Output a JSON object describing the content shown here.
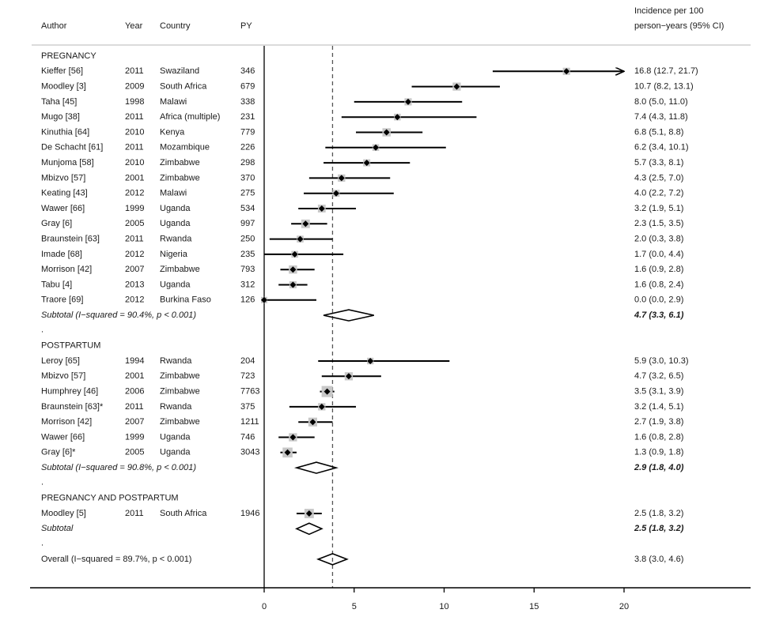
{
  "chart_data": {
    "type": "forest",
    "columns": {
      "author": "Author",
      "year": "Year",
      "country": "Country",
      "py": "PY",
      "estimate_line1": "Incidence per 100",
      "estimate_line2": "person−years (95% CI)"
    },
    "xlim": [
      0,
      20
    ],
    "xticks": [
      0,
      5,
      10,
      15,
      20
    ],
    "reference_line": 3.8,
    "groups": [
      {
        "name": "PREGNANCY",
        "studies": [
          {
            "author": "Kieffer [56]",
            "year": "2011",
            "country": "Swaziland",
            "py": "346",
            "est": 16.8,
            "lo": 12.7,
            "hi": 21.7,
            "label": "16.8 (12.7, 21.7)"
          },
          {
            "author": "Moodley [3]",
            "year": "2009",
            "country": "South Africa",
            "py": "679",
            "est": 10.7,
            "lo": 8.2,
            "hi": 13.1,
            "label": "10.7 (8.2, 13.1)"
          },
          {
            "author": "Taha [45]",
            "year": "1998",
            "country": "Malawi",
            "py": "338",
            "est": 8.0,
            "lo": 5.0,
            "hi": 11.0,
            "label": "8.0 (5.0, 11.0)"
          },
          {
            "author": "Mugo [38]",
            "year": "2011",
            "country": "Africa (multiple)",
            "py": "231",
            "est": 7.4,
            "lo": 4.3,
            "hi": 11.8,
            "label": "7.4 (4.3, 11.8)"
          },
          {
            "author": "Kinuthia [64]",
            "year": "2010",
            "country": "Kenya",
            "py": "779",
            "est": 6.8,
            "lo": 5.1,
            "hi": 8.8,
            "label": "6.8 (5.1, 8.8)"
          },
          {
            "author": "De Schacht [61]",
            "year": "2011",
            "country": "Mozambique",
            "py": "226",
            "est": 6.2,
            "lo": 3.4,
            "hi": 10.1,
            "label": "6.2 (3.4, 10.1)"
          },
          {
            "author": "Munjoma [58]",
            "year": "2010",
            "country": "Zimbabwe",
            "py": "298",
            "est": 5.7,
            "lo": 3.3,
            "hi": 8.1,
            "label": "5.7 (3.3, 8.1)"
          },
          {
            "author": "Mbizvo [57]",
            "year": "2001",
            "country": "Zimbabwe",
            "py": "370",
            "est": 4.3,
            "lo": 2.5,
            "hi": 7.0,
            "label": "4.3 (2.5, 7.0)"
          },
          {
            "author": "Keating [43]",
            "year": "2012",
            "country": "Malawi",
            "py": "275",
            "est": 4.0,
            "lo": 2.2,
            "hi": 7.2,
            "label": "4.0 (2.2, 7.2)"
          },
          {
            "author": "Wawer [66]",
            "year": "1999",
            "country": "Uganda",
            "py": "534",
            "est": 3.2,
            "lo": 1.9,
            "hi": 5.1,
            "label": "3.2 (1.9, 5.1)"
          },
          {
            "author": "Gray [6]",
            "year": "2005",
            "country": "Uganda",
            "py": "997",
            "est": 2.3,
            "lo": 1.5,
            "hi": 3.5,
            "label": "2.3 (1.5, 3.5)"
          },
          {
            "author": "Braunstein [63]",
            "year": "2011",
            "country": "Rwanda",
            "py": "250",
            "est": 2.0,
            "lo": 0.3,
            "hi": 3.8,
            "label": "2.0 (0.3, 3.8)"
          },
          {
            "author": "Imade [68]",
            "year": "2012",
            "country": "Nigeria",
            "py": "235",
            "est": 1.7,
            "lo": 0.0,
            "hi": 4.4,
            "label": "1.7 (0.0, 4.4)"
          },
          {
            "author": "Morrison [42]",
            "year": "2007",
            "country": "Zimbabwe",
            "py": "793",
            "est": 1.6,
            "lo": 0.9,
            "hi": 2.8,
            "label": "1.6 (0.9, 2.8)"
          },
          {
            "author": "Tabu [4]",
            "year": "2013",
            "country": "Uganda",
            "py": "312",
            "est": 1.6,
            "lo": 0.8,
            "hi": 2.4,
            "label": "1.6 (0.8, 2.4)"
          },
          {
            "author": "Traore [69]",
            "year": "2012",
            "country": "Burkina Faso",
            "py": "126",
            "est": 0.0,
            "lo": 0.0,
            "hi": 2.9,
            "label": "0.0 (0.0, 2.9)"
          }
        ],
        "subtotal": {
          "label": "Subtotal  (I−squared = 90.4%, p < 0.001)",
          "est": 4.7,
          "lo": 3.3,
          "hi": 6.1,
          "value": "4.7 (3.3, 6.1)"
        }
      },
      {
        "name": "POSTPARTUM",
        "studies": [
          {
            "author": "Leroy [65]",
            "year": "1994",
            "country": "Rwanda",
            "py": "204",
            "est": 5.9,
            "lo": 3.0,
            "hi": 10.3,
            "label": "5.9 (3.0, 10.3)"
          },
          {
            "author": "Mbizvo [57]",
            "year": "2001",
            "country": "Zimbabwe",
            "py": "723",
            "est": 4.7,
            "lo": 3.2,
            "hi": 6.5,
            "label": "4.7 (3.2, 6.5)"
          },
          {
            "author": "Humphrey [46]",
            "year": "2006",
            "country": "Zimbabwe",
            "py": "7763",
            "est": 3.5,
            "lo": 3.1,
            "hi": 3.9,
            "label": "3.5 (3.1, 3.9)"
          },
          {
            "author": "Braunstein [63]*",
            "year": "2011",
            "country": "Rwanda",
            "py": "375",
            "est": 3.2,
            "lo": 1.4,
            "hi": 5.1,
            "label": "3.2 (1.4, 5.1)"
          },
          {
            "author": "Morrison [42]",
            "year": "2007",
            "country": "Zimbabwe",
            "py": "1211",
            "est": 2.7,
            "lo": 1.9,
            "hi": 3.8,
            "label": "2.7 (1.9, 3.8)"
          },
          {
            "author": "Wawer [66]",
            "year": "1999",
            "country": "Uganda",
            "py": "746",
            "est": 1.6,
            "lo": 0.8,
            "hi": 2.8,
            "label": "1.6 (0.8, 2.8)"
          },
          {
            "author": "Gray [6]*",
            "year": "2005",
            "country": "Uganda",
            "py": "3043",
            "est": 1.3,
            "lo": 0.9,
            "hi": 1.8,
            "label": "1.3 (0.9, 1.8)"
          }
        ],
        "subtotal": {
          "label": "Subtotal  (I−squared = 90.8%, p < 0.001)",
          "est": 2.9,
          "lo": 1.8,
          "hi": 4.0,
          "value": "2.9 (1.8, 4.0)"
        }
      },
      {
        "name": "PREGNANCY AND POSTPARTUM",
        "studies": [
          {
            "author": "Moodley [5]",
            "year": "2011",
            "country": "South Africa",
            "py": "1946",
            "est": 2.5,
            "lo": 1.8,
            "hi": 3.2,
            "label": "2.5 (1.8, 3.2)"
          }
        ],
        "subtotal": {
          "label": "Subtotal",
          "est": 2.5,
          "lo": 1.8,
          "hi": 3.2,
          "value": "2.5 (1.8, 3.2)"
        }
      }
    ],
    "separator_mark": ".",
    "overall": {
      "label": "Overall  (I−squared = 89.7%, p < 0.001)",
      "est": 3.8,
      "lo": 3.0,
      "hi": 4.6,
      "value": "3.8 (3.0, 4.6)"
    }
  }
}
